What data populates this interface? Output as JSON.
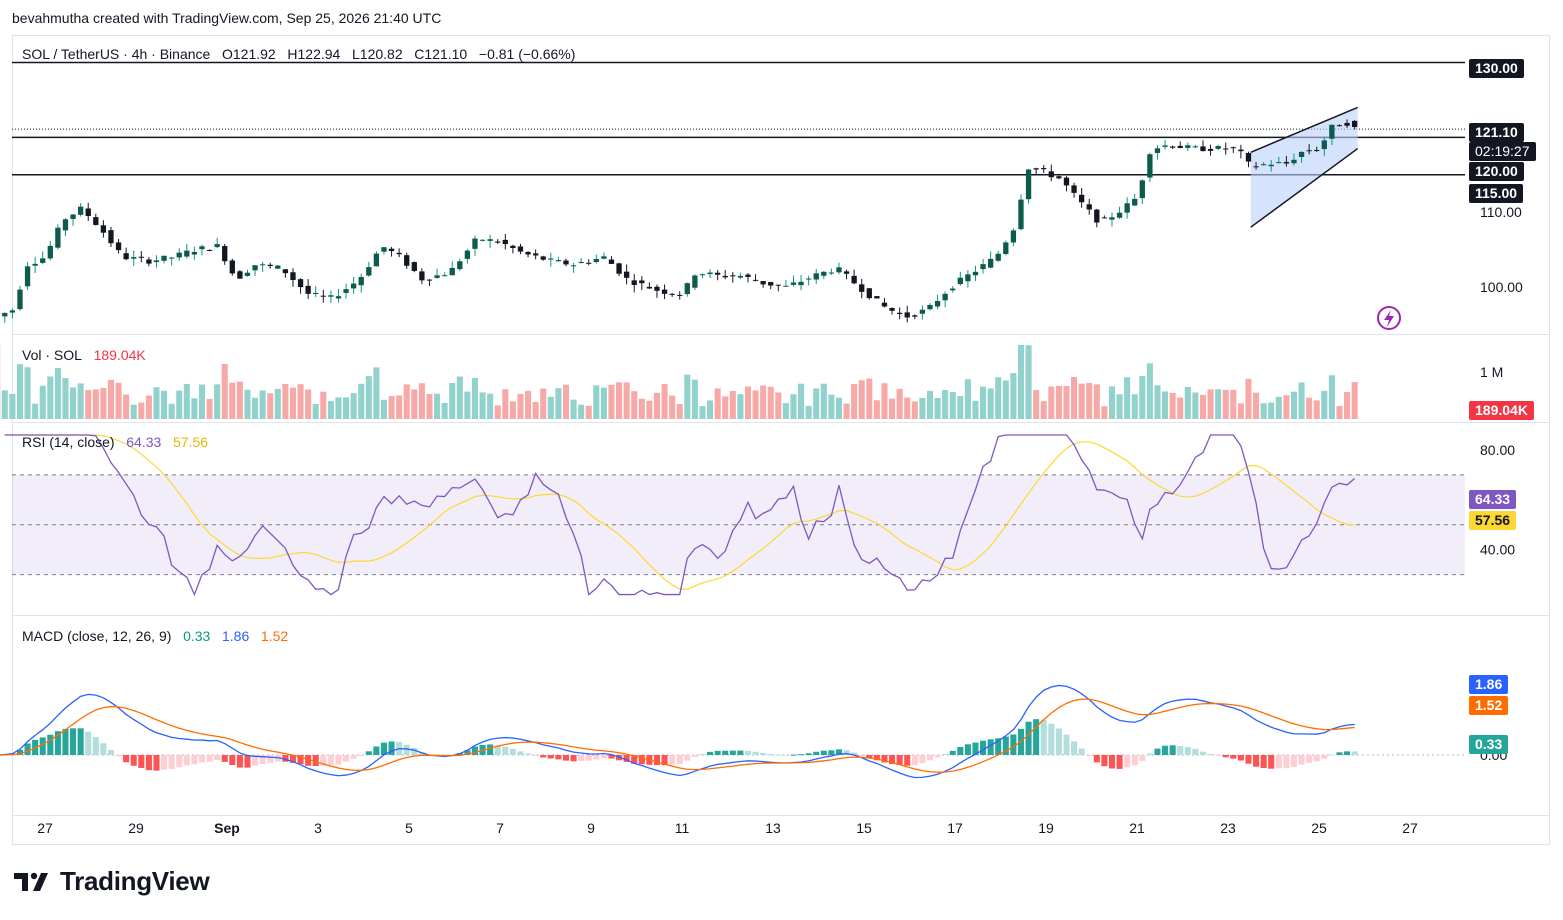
{
  "byline": "bevahmutha created with TradingView.com, Sep 25, 2026 21:40 UTC",
  "legend": {
    "symbol": "SOL / TetherUS · 4h · Binance",
    "open": "O121.92",
    "high": "H122.94",
    "low": "L120.82",
    "close": "C121.10",
    "change": "−0.81 (−0.66%)"
  },
  "vol_legend": {
    "label": "Vol · SOL",
    "value": "189.04K"
  },
  "rsi_legend": {
    "label": "RSI (14, close)",
    "rsi": "64.33",
    "ma": "57.56"
  },
  "macd_legend": {
    "label": "MACD (close, 12, 26, 9)",
    "hist": "0.33",
    "macd": "1.86",
    "signal": "1.52"
  },
  "price_tags": {
    "last": "121.10",
    "countdown": "02:19:27",
    "level_130": "130.00",
    "level_120": "120.00",
    "level_115": "115.00",
    "vol_last": "189.04K",
    "rsi": "64.33",
    "rsi_ma": "57.56",
    "macd": "1.86",
    "signal": "1.52",
    "hist": "0.33"
  },
  "brand": "TradingView",
  "colors": {
    "up": "#089981",
    "down": "#f23645",
    "vol_up": "#92d2cc",
    "vol_down": "#f7a9a7",
    "rsi": "#7e57c2",
    "rsi_ma": "#fdd835",
    "macd": "#2962ff",
    "signal": "#ff6d00",
    "channel": "#bbd0fb"
  },
  "chart_data": [
    {
      "type": "candlestick",
      "title": "SOL / TetherUS · 4h · Binance",
      "x_ticks": [
        "27",
        "29",
        "Sep",
        "3",
        "5",
        "7",
        "9",
        "11",
        "13",
        "15",
        "17",
        "19",
        "21",
        "23",
        "25",
        "27"
      ],
      "y_ticks": [
        100,
        110,
        130
      ],
      "ylim": [
        94,
        133
      ],
      "horizontal_levels": [
        130,
        120,
        115
      ],
      "last_price": 121.1,
      "close_approx": [
        {
          "x": "Aug 26",
          "y": 96
        },
        {
          "x": "Aug 27",
          "y": 103
        },
        {
          "x": "Aug 28",
          "y": 110
        },
        {
          "x": "Aug 29",
          "y": 104
        },
        {
          "x": "Aug 30",
          "y": 105
        },
        {
          "x": "Aug 31",
          "y": 104
        },
        {
          "x": "Sep 1",
          "y": 103
        },
        {
          "x": "Sep 2",
          "y": 99
        },
        {
          "x": "Sep 3",
          "y": 101
        },
        {
          "x": "Sep 4",
          "y": 106
        },
        {
          "x": "Sep 5",
          "y": 103
        },
        {
          "x": "Sep 6",
          "y": 106
        },
        {
          "x": "Sep 7",
          "y": 107
        },
        {
          "x": "Sep 8",
          "y": 104
        },
        {
          "x": "Sep 9",
          "y": 104
        },
        {
          "x": "Sep 10",
          "y": 100
        },
        {
          "x": "Sep 11",
          "y": 100
        },
        {
          "x": "Sep 12",
          "y": 102
        },
        {
          "x": "Sep 13",
          "y": 101
        },
        {
          "x": "Sep 14",
          "y": 102
        },
        {
          "x": "Sep 15",
          "y": 101
        },
        {
          "x": "Sep 16",
          "y": 97
        },
        {
          "x": "Sep 17",
          "y": 100
        },
        {
          "x": "Sep 18",
          "y": 106
        },
        {
          "x": "Sep 19",
          "y": 115
        },
        {
          "x": "Sep 20",
          "y": 109
        },
        {
          "x": "Sep 21",
          "y": 118
        },
        {
          "x": "Sep 22",
          "y": 119
        },
        {
          "x": "Sep 23",
          "y": 118
        },
        {
          "x": "Sep 24",
          "y": 116
        },
        {
          "x": "Sep 25",
          "y": 121.1
        }
      ]
    },
    {
      "type": "bar",
      "title": "Vol · SOL",
      "y_ticks": [
        "1 M"
      ],
      "last_value": "189.04K"
    },
    {
      "type": "line",
      "title": "RSI (14, close)",
      "y_ticks": [
        80,
        40
      ],
      "bands": [
        70,
        50,
        30
      ],
      "series": [
        {
          "name": "RSI",
          "last": 64.33
        },
        {
          "name": "MA",
          "last": 57.56
        }
      ]
    },
    {
      "type": "line",
      "title": "MACD (close, 12, 26, 9)",
      "y_ticks": [
        "0.00"
      ],
      "series": [
        {
          "name": "MACD",
          "last": 1.86
        },
        {
          "name": "Signal",
          "last": 1.52
        },
        {
          "name": "Histogram",
          "last": 0.33
        }
      ]
    }
  ]
}
